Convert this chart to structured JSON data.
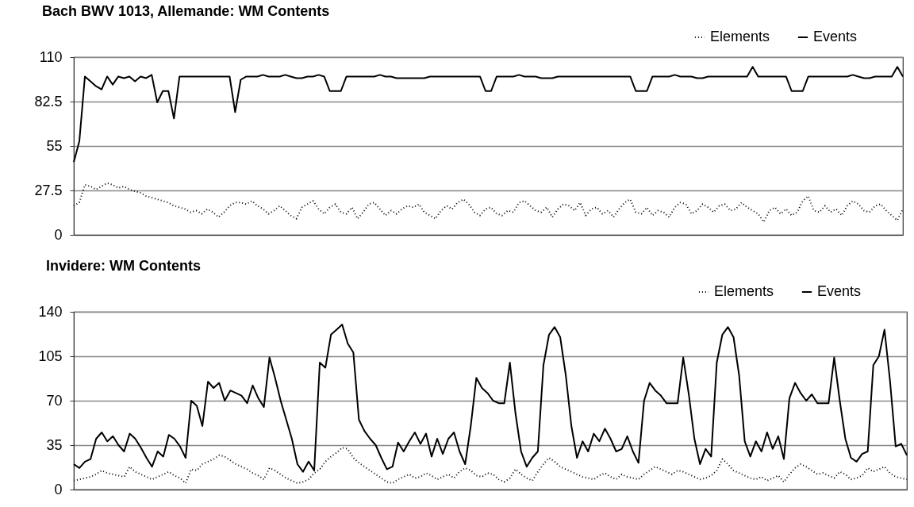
{
  "chart_data": [
    {
      "type": "line",
      "title": "Bach BWV 1013, Allemande: WM Contents",
      "categories": [
        null,
        null,
        null,
        null,
        null,
        null,
        null,
        null,
        null,
        null,
        null,
        null,
        null,
        null,
        null,
        null,
        null,
        null,
        null,
        null,
        null,
        null,
        null,
        null,
        null,
        null,
        null,
        null,
        null,
        null,
        null,
        null,
        null,
        null,
        null,
        null,
        null,
        null,
        null,
        null,
        null,
        null,
        null,
        null,
        null,
        null,
        null,
        null,
        null,
        null,
        null,
        null,
        null,
        null,
        null,
        null,
        null,
        null,
        null,
        null,
        null,
        null,
        null,
        null,
        null,
        null,
        null,
        null,
        null,
        null,
        null,
        null,
        null,
        null,
        null,
        null,
        null,
        null,
        null,
        null,
        null,
        null,
        null,
        null,
        null,
        null,
        null,
        null,
        null,
        null,
        null,
        null,
        null,
        null,
        null,
        null,
        null,
        null,
        null,
        null,
        null,
        null,
        null,
        null,
        null,
        null,
        null,
        null,
        null,
        null,
        null,
        null,
        null,
        null,
        null,
        null,
        null,
        null,
        null,
        null,
        null,
        null,
        null,
        null,
        null,
        null,
        null,
        null,
        null,
        null,
        null,
        null,
        null,
        null,
        null,
        null,
        null,
        null,
        null,
        null,
        null,
        null,
        null,
        null,
        null,
        null,
        null,
        null,
        null,
        null
      ],
      "series": [
        {
          "name": "Elements",
          "color": "#000000",
          "line_style": "dotted",
          "values": [
            18,
            20,
            31,
            30,
            28,
            30,
            32,
            31,
            29,
            30,
            28,
            27,
            26,
            24,
            23,
            22,
            21,
            20,
            18,
            17,
            16,
            14,
            15,
            13,
            16,
            14,
            11,
            14,
            18,
            20,
            20,
            19,
            21,
            18,
            16,
            13,
            15,
            18,
            15,
            12,
            10,
            17,
            19,
            21,
            16,
            13,
            17,
            19,
            14,
            13,
            17,
            10,
            14,
            19,
            20,
            16,
            12,
            15,
            13,
            16,
            18,
            17,
            19,
            14,
            12,
            10,
            15,
            18,
            16,
            20,
            22,
            19,
            14,
            12,
            16,
            17,
            13,
            12,
            15,
            14,
            20,
            21,
            18,
            15,
            14,
            17,
            11,
            16,
            19,
            18,
            15,
            20,
            12,
            16,
            17,
            13,
            15,
            11,
            16,
            20,
            22,
            14,
            13,
            17,
            12,
            15,
            14,
            11,
            17,
            20,
            19,
            13,
            15,
            19,
            17,
            14,
            18,
            19,
            15,
            16,
            20,
            17,
            15,
            13,
            8,
            15,
            17,
            13,
            16,
            12,
            14,
            21,
            24,
            15,
            14,
            18,
            14,
            16,
            12,
            18,
            21,
            19,
            15,
            14,
            18,
            19,
            15,
            12,
            9,
            16
          ]
        },
        {
          "name": "Events",
          "color": "#000000",
          "line_style": "solid",
          "values": [
            45,
            58,
            98,
            95,
            92,
            90,
            98,
            93,
            98,
            97,
            98,
            95,
            98,
            97,
            99,
            82,
            89,
            89,
            72,
            98,
            98,
            98,
            98,
            98,
            98,
            98,
            98,
            98,
            98,
            76,
            96,
            98,
            98,
            98,
            99,
            98,
            98,
            98,
            99,
            98,
            97,
            97,
            98,
            98,
            99,
            98,
            89,
            89,
            89,
            98,
            98,
            98,
            98,
            98,
            98,
            99,
            98,
            98,
            97,
            97,
            97,
            97,
            97,
            97,
            98,
            98,
            98,
            98,
            98,
            98,
            98,
            98,
            98,
            98,
            89,
            89,
            98,
            98,
            98,
            98,
            99,
            98,
            98,
            98,
            97,
            97,
            97,
            98,
            98,
            98,
            98,
            98,
            98,
            98,
            98,
            98,
            98,
            98,
            98,
            98,
            98,
            89,
            89,
            89,
            98,
            98,
            98,
            98,
            99,
            98,
            98,
            98,
            97,
            97,
            98,
            98,
            98,
            98,
            98,
            98,
            98,
            98,
            104,
            98,
            98,
            98,
            98,
            98,
            98,
            89,
            89,
            89,
            98,
            98,
            98,
            98,
            98,
            98,
            98,
            98,
            99,
            98,
            97,
            97,
            98,
            98,
            98,
            98,
            104,
            98
          ]
        }
      ],
      "ylim": [
        0,
        110
      ],
      "yticks": [
        0,
        {
          "value": 27.5,
          "label": "27.5"
        },
        55,
        {
          "value": 82.5,
          "label": "82.5"
        },
        110
      ],
      "grid": "y",
      "legend": "top right",
      "tick_labels": "y"
    },
    {
      "type": "line",
      "title": "Invidere: WM Contents",
      "categories": [
        null,
        null,
        null,
        null,
        null,
        null,
        null,
        null,
        null,
        null,
        null,
        null,
        null,
        null,
        null,
        null,
        null,
        null,
        null,
        null,
        null,
        null,
        null,
        null,
        null,
        null,
        null,
        null,
        null,
        null,
        null,
        null,
        null,
        null,
        null,
        null,
        null,
        null,
        null,
        null,
        null,
        null,
        null,
        null,
        null,
        null,
        null,
        null,
        null,
        null,
        null,
        null,
        null,
        null,
        null,
        null,
        null,
        null,
        null,
        null,
        null,
        null,
        null,
        null,
        null,
        null,
        null,
        null,
        null,
        null,
        null,
        null,
        null,
        null,
        null,
        null,
        null,
        null,
        null,
        null,
        null,
        null,
        null,
        null,
        null,
        null,
        null,
        null,
        null,
        null,
        null,
        null,
        null,
        null,
        null,
        null,
        null,
        null,
        null,
        null,
        null,
        null,
        null,
        null,
        null,
        null,
        null,
        null,
        null,
        null,
        null,
        null,
        null,
        null,
        null,
        null,
        null,
        null,
        null,
        null,
        null,
        null,
        null,
        null,
        null,
        null,
        null,
        null,
        null,
        null,
        null,
        null,
        null,
        null,
        null,
        null,
        null,
        null,
        null,
        null,
        null,
        null,
        null,
        null,
        null,
        null,
        null,
        null,
        null,
        null
      ],
      "series": [
        {
          "name": "Elements",
          "color": "#000000",
          "line_style": "dotted",
          "values": [
            7,
            8,
            9,
            10,
            12,
            15,
            13,
            12,
            11,
            10,
            18,
            14,
            12,
            10,
            8,
            10,
            12,
            14,
            11,
            9,
            5,
            16,
            15,
            20,
            22,
            24,
            27,
            26,
            23,
            20,
            18,
            16,
            13,
            11,
            8,
            17,
            15,
            12,
            9,
            7,
            5,
            6,
            8,
            13,
            16,
            22,
            26,
            29,
            33,
            32,
            25,
            21,
            18,
            15,
            12,
            9,
            6,
            5,
            8,
            10,
            12,
            9,
            10,
            13,
            11,
            8,
            10,
            12,
            9,
            14,
            17,
            15,
            11,
            10,
            13,
            12,
            8,
            6,
            9,
            16,
            12,
            9,
            7,
            14,
            20,
            25,
            22,
            18,
            16,
            14,
            12,
            10,
            9,
            8,
            11,
            13,
            10,
            8,
            12,
            10,
            9,
            8,
            12,
            15,
            18,
            16,
            14,
            12,
            15,
            14,
            12,
            10,
            8,
            9,
            11,
            15,
            24,
            20,
            15,
            13,
            11,
            9,
            8,
            10,
            7,
            9,
            11,
            6,
            12,
            17,
            20,
            18,
            15,
            12,
            13,
            11,
            9,
            14,
            12,
            8,
            9,
            11,
            17,
            14,
            16,
            18,
            13,
            10,
            9,
            8
          ]
        },
        {
          "name": "Events",
          "color": "#000000",
          "line_style": "solid",
          "values": [
            20,
            17,
            22,
            24,
            40,
            45,
            38,
            42,
            35,
            30,
            44,
            40,
            33,
            25,
            18,
            30,
            26,
            43,
            40,
            34,
            25,
            70,
            66,
            50,
            85,
            80,
            84,
            70,
            78,
            76,
            74,
            68,
            82,
            72,
            65,
            104,
            88,
            70,
            55,
            40,
            20,
            14,
            22,
            15,
            100,
            96,
            122,
            126,
            130,
            115,
            108,
            55,
            46,
            40,
            35,
            25,
            16,
            18,
            37,
            30,
            38,
            45,
            36,
            44,
            26,
            40,
            28,
            40,
            45,
            30,
            20,
            50,
            88,
            80,
            76,
            70,
            68,
            68,
            100,
            60,
            30,
            18,
            25,
            30,
            98,
            122,
            128,
            120,
            90,
            50,
            25,
            38,
            30,
            44,
            38,
            48,
            40,
            30,
            32,
            42,
            30,
            21,
            70,
            84,
            78,
            74,
            68,
            68,
            68,
            104,
            75,
            40,
            20,
            32,
            26,
            100,
            122,
            128,
            120,
            90,
            38,
            26,
            38,
            30,
            45,
            32,
            42,
            24,
            72,
            84,
            76,
            70,
            75,
            68,
            68,
            68,
            104,
            70,
            40,
            25,
            22,
            28,
            30,
            98,
            105,
            126,
            85,
            34,
            36,
            27
          ]
        }
      ],
      "ylim": [
        0,
        140
      ],
      "yticks": [
        0,
        35,
        70,
        105,
        140
      ],
      "grid": "y",
      "legend": "top right",
      "tick_labels": "y"
    }
  ]
}
